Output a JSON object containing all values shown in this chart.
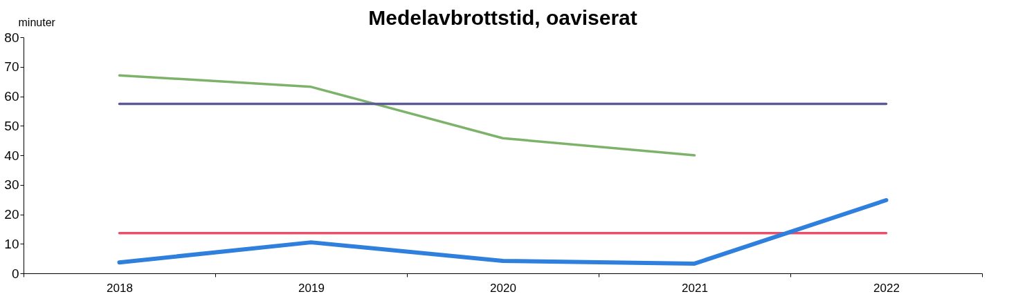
{
  "chart_data": {
    "type": "line",
    "title": "Medelavbrottstid, oaviserat",
    "ylabel": "minuter",
    "categories": [
      "2018",
      "2019",
      "2020",
      "2021",
      "2022"
    ],
    "series": [
      {
        "color": "#7db26a",
        "values": [
          67.1,
          63.2,
          45.8,
          40.0,
          null
        ]
      },
      {
        "color": "#5c5a94",
        "values": [
          57.4,
          57.4,
          57.4,
          57.4,
          57.4
        ]
      },
      {
        "color": "#e8506a",
        "values": [
          13.6,
          13.6,
          13.6,
          13.6,
          13.6
        ]
      },
      {
        "color": "#2f7fdc",
        "values": [
          3.7,
          10.5,
          4.2,
          3.3,
          24.8
        ]
      }
    ],
    "ylim": [
      0,
      80
    ],
    "yticks": [
      0,
      10,
      20,
      30,
      40,
      50,
      60,
      70,
      80
    ],
    "grid": false,
    "marker": "none",
    "line_style": "solid"
  }
}
